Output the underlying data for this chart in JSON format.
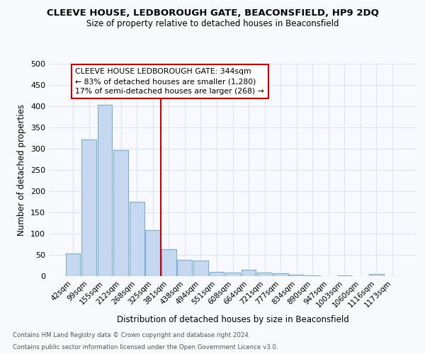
{
  "title1": "CLEEVE HOUSE, LEDBOROUGH GATE, BEACONSFIELD, HP9 2DQ",
  "title2": "Size of property relative to detached houses in Beaconsfield",
  "xlabel": "Distribution of detached houses by size in Beaconsfield",
  "ylabel": "Number of detached properties",
  "categories": [
    "42sqm",
    "99sqm",
    "155sqm",
    "212sqm",
    "268sqm",
    "325sqm",
    "381sqm",
    "438sqm",
    "494sqm",
    "551sqm",
    "608sqm",
    "664sqm",
    "721sqm",
    "777sqm",
    "834sqm",
    "890sqm",
    "947sqm",
    "1003sqm",
    "1060sqm",
    "1116sqm",
    "1173sqm"
  ],
  "values": [
    54,
    322,
    403,
    297,
    175,
    108,
    64,
    39,
    36,
    10,
    9,
    15,
    9,
    7,
    4,
    2,
    0,
    1,
    0,
    5,
    0
  ],
  "bar_color": "#c5d8f0",
  "bar_edge_color": "#7aadd4",
  "vline_x": 5.5,
  "vline_color": "#cc0000",
  "annotation_line1": "CLEEVE HOUSE LEDBOROUGH GATE: 344sqm",
  "annotation_line2": "← 83% of detached houses are smaller (1,280)",
  "annotation_line3": "17% of semi-detached houses are larger (268) →",
  "annotation_box_facecolor": "#ffffff",
  "annotation_box_edgecolor": "#cc0000",
  "footnote1": "Contains HM Land Registry data © Crown copyright and database right 2024.",
  "footnote2": "Contains public sector information licensed under the Open Government Licence v3.0.",
  "ylim": [
    0,
    500
  ],
  "yticks": [
    0,
    50,
    100,
    150,
    200,
    250,
    300,
    350,
    400,
    450,
    500
  ],
  "bg_color": "#f7f9fd",
  "grid_color": "#d8e4f0"
}
